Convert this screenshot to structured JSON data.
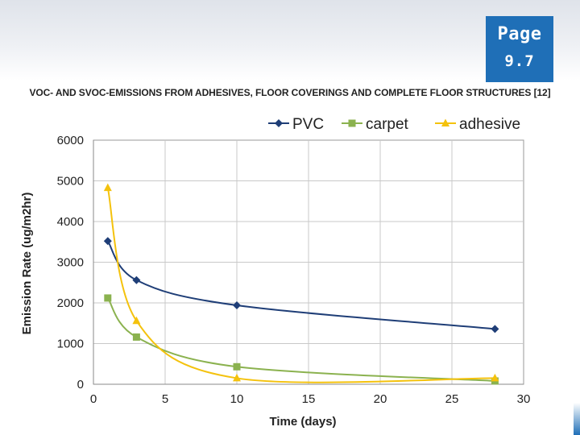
{
  "badge": {
    "word": "Page",
    "number": "9.7",
    "color": "#1f6fb7"
  },
  "slide_title": "VOC- AND SVOC-EMISSIONS FROM ADHESIVES, FLOOR COVERINGS AND COMPLETE FLOOR STRUCTURES [12]",
  "chart_data": {
    "type": "line",
    "title": "",
    "xlabel": "Time (days)",
    "ylabel": "Emission Rate (ug/m2hr)",
    "xlim": [
      0,
      30
    ],
    "ylim": [
      0,
      6000
    ],
    "x_ticks": [
      0,
      5,
      10,
      15,
      20,
      25,
      30
    ],
    "y_ticks": [
      0,
      1000,
      2000,
      3000,
      4000,
      5000,
      6000
    ],
    "grid": true,
    "smooth": true,
    "legend_position": "top",
    "series": [
      {
        "name": "PVC",
        "color": "#1f3e77",
        "marker": "diamond",
        "x": [
          1,
          3,
          10,
          28
        ],
        "y": [
          3520,
          2560,
          1940,
          1360
        ]
      },
      {
        "name": "carpet",
        "color": "#8bb24f",
        "marker": "square",
        "x": [
          1,
          3,
          10,
          28
        ],
        "y": [
          2120,
          1160,
          430,
          80
        ]
      },
      {
        "name": "adhesive",
        "color": "#f4c20d",
        "marker": "triangle",
        "x": [
          1,
          3,
          10,
          28
        ],
        "y": [
          4830,
          1560,
          150,
          150
        ]
      }
    ]
  }
}
